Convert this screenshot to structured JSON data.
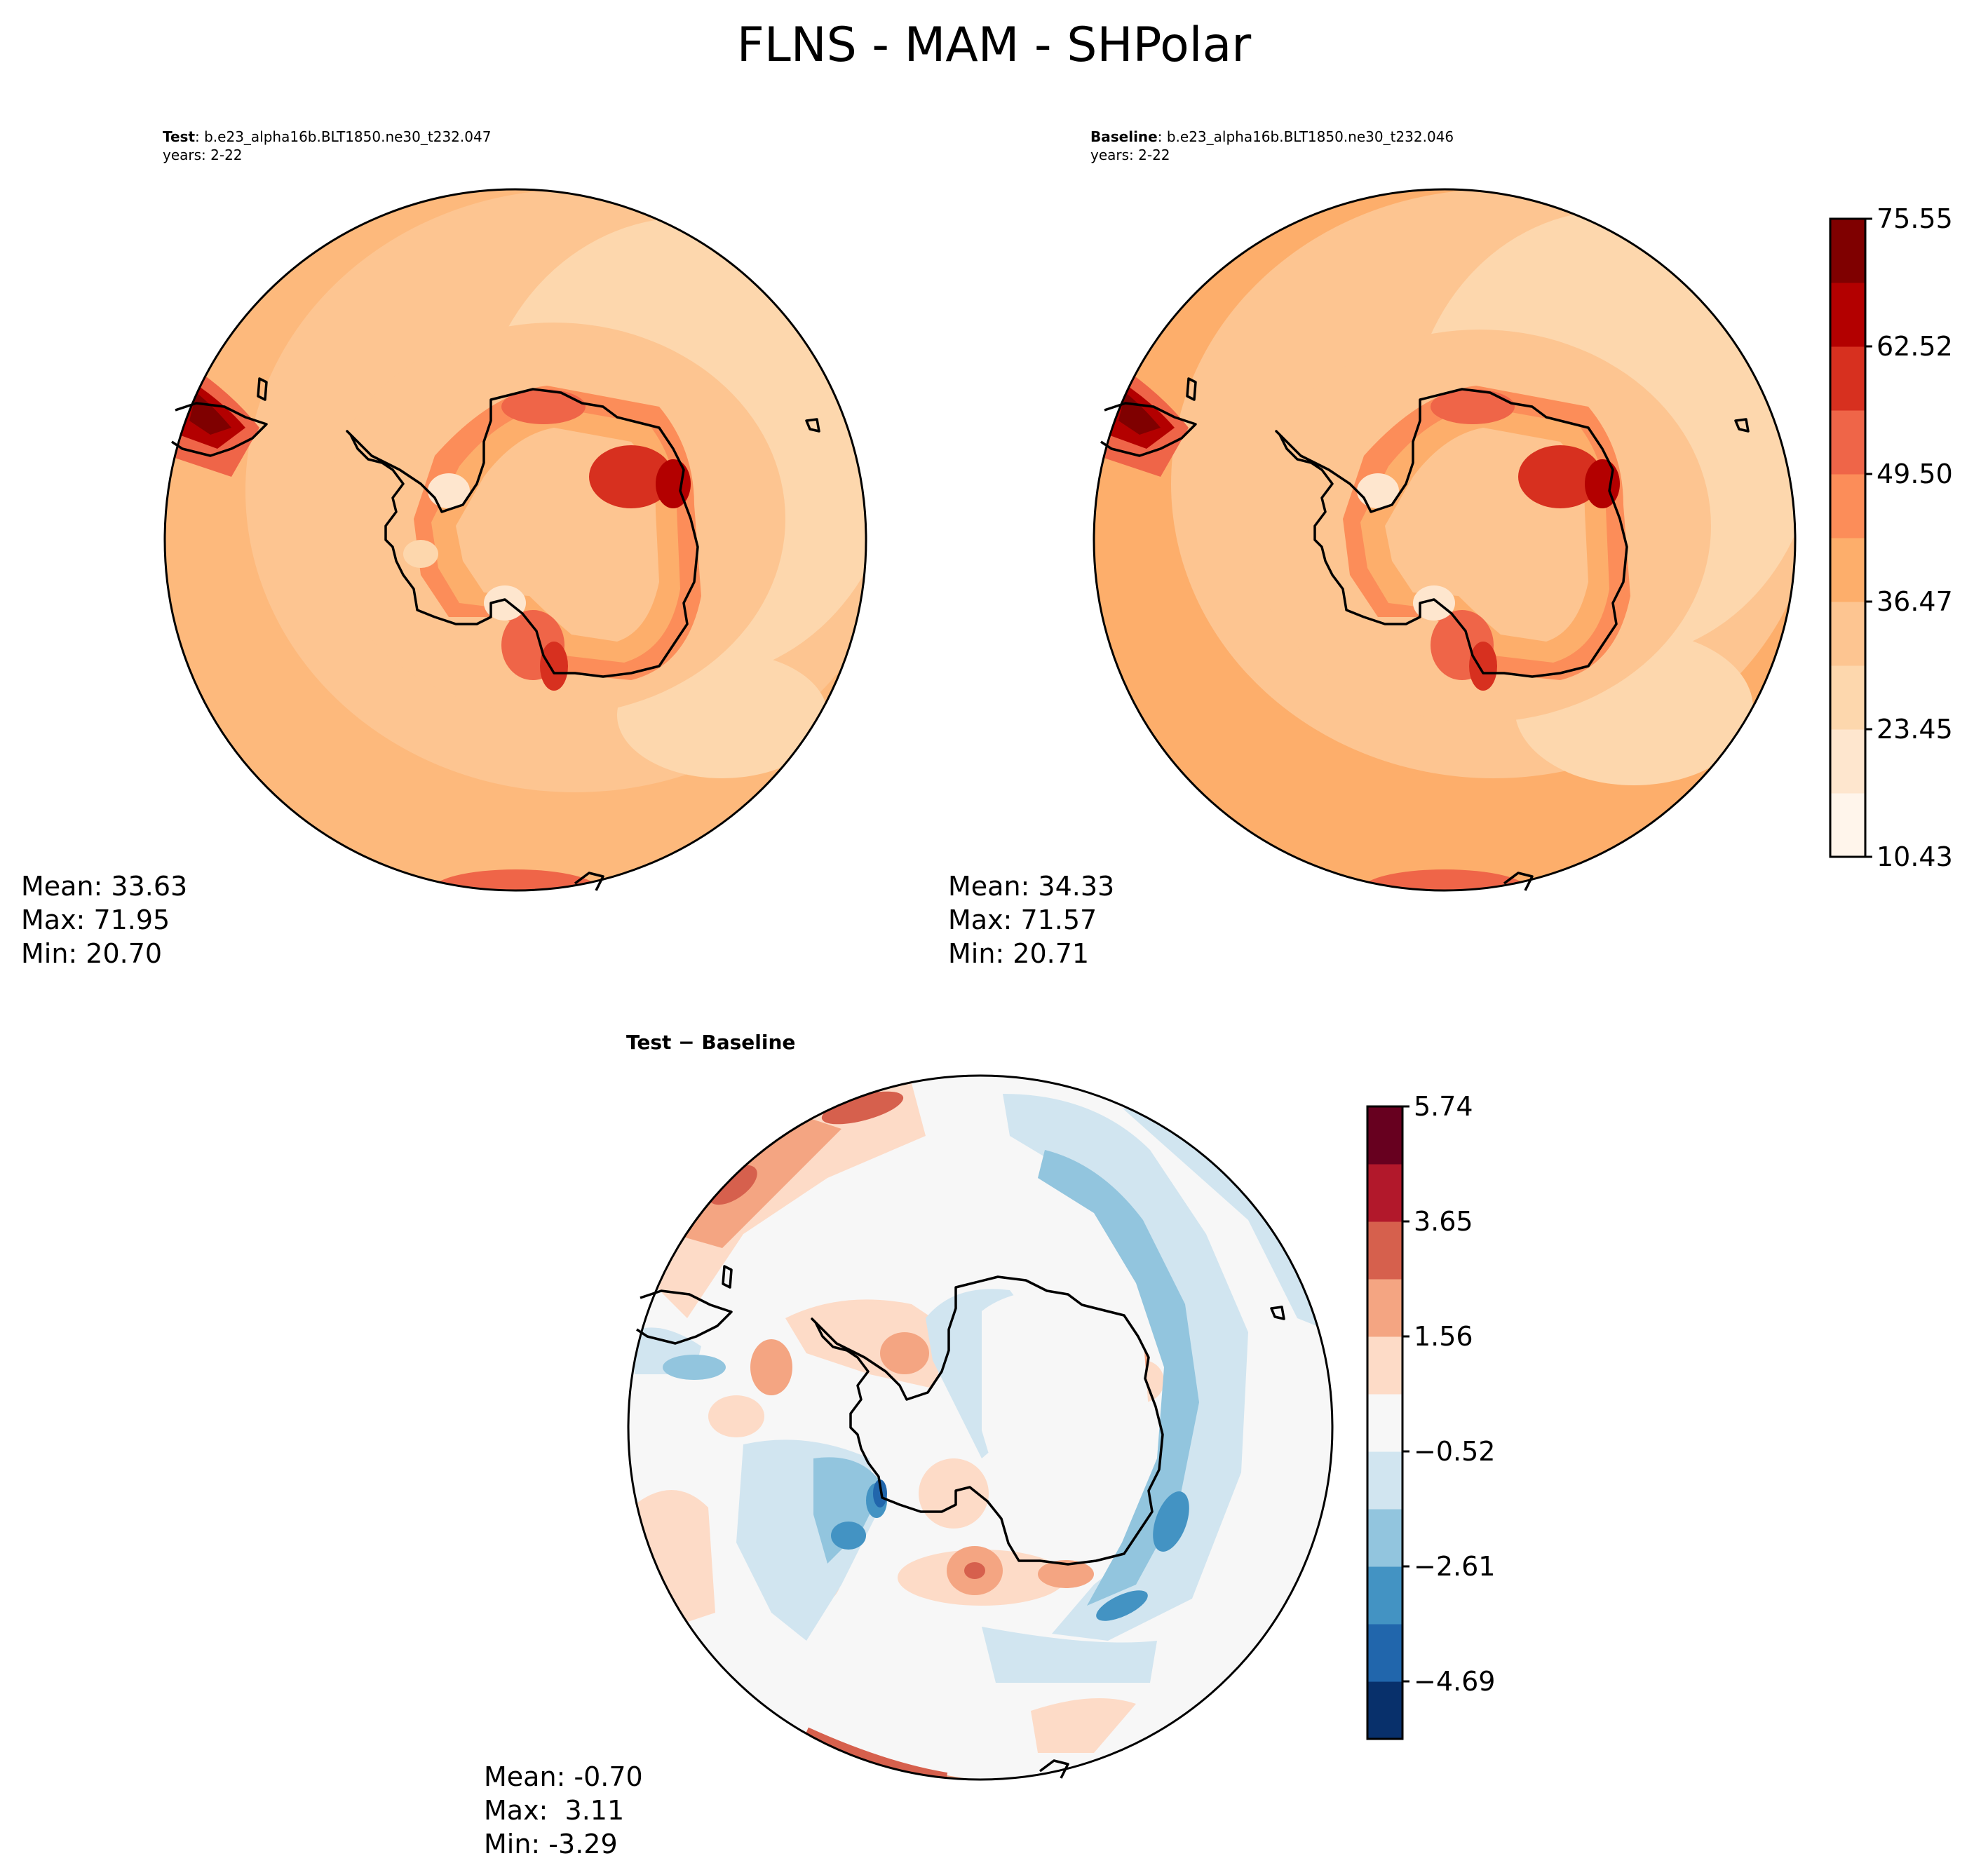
{
  "title": "FLNS - MAM - SHPolar",
  "test_panel": {
    "label": "Test",
    "case": ": b.e23_alpha16b.BLT1850.ne30_t232.047",
    "years": "years: 2-22",
    "stats": {
      "mean": "Mean: 33.63",
      "max": "Max: 71.95",
      "min": "Min: 20.70"
    }
  },
  "baseline_panel": {
    "label": "Baseline",
    "case": ": b.e23_alpha16b.BLT1850.ne30_t232.046",
    "years": "years: 2-22",
    "stats": {
      "mean": "Mean: 34.33",
      "max": "Max: 71.57",
      "min": "Min: 20.71"
    }
  },
  "diff_panel": {
    "title": "Test − Baseline",
    "stats": {
      "mean": "Mean: -0.70",
      "max": "Max:  3.11",
      "min": "Min: -3.29"
    }
  },
  "colorbar_top": {
    "colors": [
      "#fff5eb",
      "#fee6ce",
      "#fdd7ad",
      "#fdc591",
      "#fdae6b",
      "#fc8d59",
      "#ef6548",
      "#d7301f",
      "#b30000",
      "#7f0000"
    ],
    "ticks": [
      "10.43",
      "23.45",
      "36.47",
      "49.50",
      "62.52",
      "75.55"
    ]
  },
  "colorbar_diff": {
    "colors": [
      "#08306b",
      "#2166ac",
      "#4393c3",
      "#92c5de",
      "#d1e5f0",
      "#f7f7f7",
      "#fddbc7",
      "#f4a582",
      "#d6604d",
      "#b2182b",
      "#67001f"
    ],
    "ticks": [
      "−4.69",
      "−2.61",
      "−0.52",
      "1.56",
      "3.65",
      "5.74"
    ]
  },
  "chart_data": {
    "type": "heatmap",
    "variable": "FLNS",
    "season": "MAM",
    "region": "SHPolar",
    "panels": [
      {
        "name": "Test",
        "mean": 33.63,
        "max": 71.95,
        "min": 20.7
      },
      {
        "name": "Baseline",
        "mean": 34.33,
        "max": 71.57,
        "min": 20.71
      },
      {
        "name": "Test − Baseline",
        "mean": -0.7,
        "max": 3.11,
        "min": -3.29
      }
    ],
    "colorbar_top_range": [
      10.43,
      81.0
    ],
    "colorbar_diff_range": [
      -5.74,
      5.74
    ]
  }
}
